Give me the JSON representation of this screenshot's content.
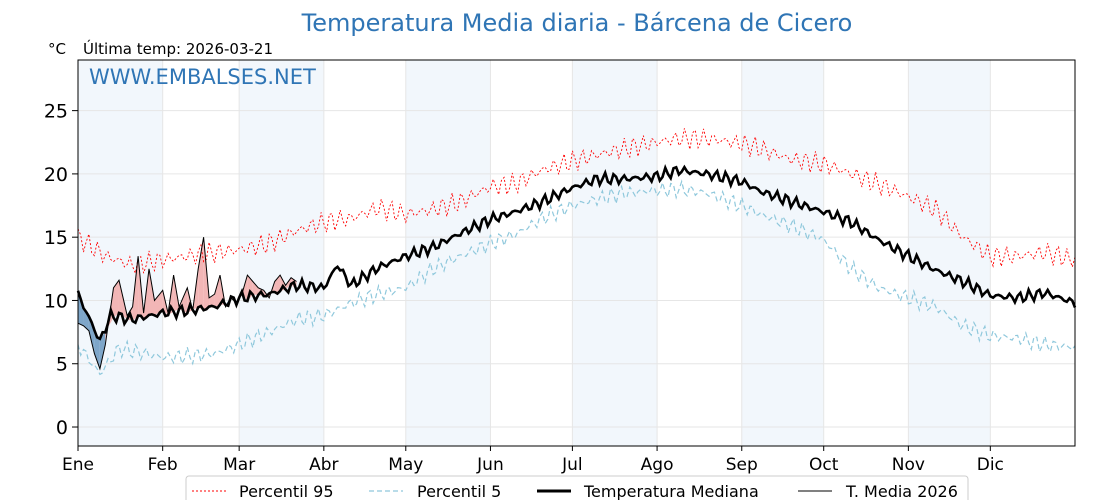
{
  "chart_data": {
    "type": "line",
    "title": "Temperatura Media diaria - Bárcena de Cicero",
    "unit_label": "°C",
    "last_temp_label": "Última temp: 2026-03-21",
    "watermark": "WWW.EMBALSES.NET",
    "xlabel": "",
    "ylabel": "",
    "ylim": [
      -1.5,
      29.0
    ],
    "yticks": [
      0,
      5,
      10,
      15,
      20,
      25
    ],
    "xlim_days": [
      0,
      365
    ],
    "month_labels": [
      "Ene",
      "Feb",
      "Mar",
      "Abr",
      "May",
      "Jun",
      "Jul",
      "Ago",
      "Sep",
      "Oct",
      "Nov",
      "Dic"
    ],
    "month_starts": [
      0,
      31,
      59,
      90,
      120,
      151,
      181,
      212,
      243,
      273,
      304,
      334
    ],
    "grid": true,
    "legend_position": "bottom",
    "series": [
      {
        "name": "Percentil 95",
        "color": "#ff0000",
        "style": "dotted",
        "points": [
          [
            0,
            15.0
          ],
          [
            10,
            13.5
          ],
          [
            20,
            12.8
          ],
          [
            31,
            13.2
          ],
          [
            40,
            13.5
          ],
          [
            50,
            13.8
          ],
          [
            59,
            14.0
          ],
          [
            70,
            14.5
          ],
          [
            80,
            15.5
          ],
          [
            90,
            16.2
          ],
          [
            100,
            16.5
          ],
          [
            110,
            17.3
          ],
          [
            120,
            16.8
          ],
          [
            130,
            17.2
          ],
          [
            140,
            17.8
          ],
          [
            151,
            19.0
          ],
          [
            160,
            19.2
          ],
          [
            170,
            20.3
          ],
          [
            181,
            21.0
          ],
          [
            190,
            21.5
          ],
          [
            200,
            22.0
          ],
          [
            212,
            22.5
          ],
          [
            220,
            22.8
          ],
          [
            230,
            22.8
          ],
          [
            243,
            22.4
          ],
          [
            250,
            22.0
          ],
          [
            260,
            21.2
          ],
          [
            273,
            20.8
          ],
          [
            283,
            20.0
          ],
          [
            293,
            19.2
          ],
          [
            304,
            18.2
          ],
          [
            314,
            17.2
          ],
          [
            324,
            15.0
          ],
          [
            334,
            13.5
          ],
          [
            344,
            13.5
          ],
          [
            354,
            13.8
          ],
          [
            365,
            13.2
          ]
        ]
      },
      {
        "name": "Percentil 5",
        "color": "#8fc8dc",
        "style": "dashed",
        "points": [
          [
            0,
            6.5
          ],
          [
            8,
            4.2
          ],
          [
            15,
            6.2
          ],
          [
            25,
            5.8
          ],
          [
            31,
            5.5
          ],
          [
            40,
            5.6
          ],
          [
            50,
            5.8
          ],
          [
            59,
            6.5
          ],
          [
            70,
            7.5
          ],
          [
            80,
            8.5
          ],
          [
            90,
            8.8
          ],
          [
            100,
            9.8
          ],
          [
            110,
            10.5
          ],
          [
            120,
            11.0
          ],
          [
            130,
            12.5
          ],
          [
            140,
            13.5
          ],
          [
            151,
            14.5
          ],
          [
            160,
            15.2
          ],
          [
            170,
            16.5
          ],
          [
            181,
            17.5
          ],
          [
            190,
            18.0
          ],
          [
            200,
            18.5
          ],
          [
            212,
            18.7
          ],
          [
            220,
            18.8
          ],
          [
            230,
            18.5
          ],
          [
            243,
            17.5
          ],
          [
            250,
            16.8
          ],
          [
            260,
            16.0
          ],
          [
            273,
            14.8
          ],
          [
            283,
            12.5
          ],
          [
            293,
            11.0
          ],
          [
            304,
            10.2
          ],
          [
            314,
            9.5
          ],
          [
            324,
            8.0
          ],
          [
            334,
            7.2
          ],
          [
            344,
            7.0
          ],
          [
            354,
            6.5
          ],
          [
            365,
            6.3
          ]
        ]
      },
      {
        "name": "Temperatura Mediana",
        "color": "#000000",
        "style": "solid-thick",
        "points": [
          [
            0,
            10.5
          ],
          [
            8,
            6.8
          ],
          [
            12,
            8.8
          ],
          [
            20,
            8.5
          ],
          [
            31,
            9.0
          ],
          [
            40,
            9.2
          ],
          [
            50,
            9.5
          ],
          [
            59,
            10.2
          ],
          [
            70,
            10.5
          ],
          [
            80,
            11.2
          ],
          [
            90,
            11.0
          ],
          [
            95,
            12.8
          ],
          [
            100,
            11.2
          ],
          [
            110,
            12.6
          ],
          [
            120,
            13.5
          ],
          [
            130,
            14.2
          ],
          [
            140,
            15.3
          ],
          [
            151,
            16.4
          ],
          [
            160,
            17.0
          ],
          [
            170,
            17.8
          ],
          [
            181,
            18.9
          ],
          [
            190,
            19.6
          ],
          [
            200,
            19.6
          ],
          [
            212,
            19.8
          ],
          [
            220,
            20.3
          ],
          [
            230,
            20.0
          ],
          [
            243,
            19.4
          ],
          [
            250,
            18.6
          ],
          [
            260,
            17.9
          ],
          [
            273,
            17.0
          ],
          [
            283,
            16.2
          ],
          [
            293,
            14.8
          ],
          [
            304,
            13.5
          ],
          [
            314,
            12.4
          ],
          [
            324,
            11.5
          ],
          [
            334,
            10.4
          ],
          [
            344,
            10.2
          ],
          [
            354,
            10.6
          ],
          [
            365,
            9.8
          ]
        ]
      },
      {
        "name": "T. Media 2026",
        "color": "#000000",
        "style": "solid-thin",
        "points": [
          [
            0,
            8.2
          ],
          [
            2,
            8.0
          ],
          [
            4,
            7.6
          ],
          [
            6,
            5.8
          ],
          [
            8,
            4.6
          ],
          [
            10,
            6.5
          ],
          [
            13,
            11.0
          ],
          [
            15,
            11.6
          ],
          [
            18,
            8.8
          ],
          [
            20,
            9.5
          ],
          [
            22,
            13.5
          ],
          [
            24,
            9.0
          ],
          [
            26,
            12.5
          ],
          [
            28,
            10.0
          ],
          [
            31,
            10.8
          ],
          [
            33,
            9.0
          ],
          [
            35,
            12.0
          ],
          [
            37,
            9.5
          ],
          [
            40,
            11.0
          ],
          [
            42,
            9.2
          ],
          [
            44,
            12.5
          ],
          [
            46,
            15.0
          ],
          [
            48,
            10.2
          ],
          [
            50,
            10.5
          ],
          [
            52,
            12.0
          ],
          [
            54,
            9.5
          ],
          [
            56,
            10.2
          ],
          [
            58,
            9.8
          ],
          [
            60,
            10.5
          ],
          [
            62,
            12.0
          ],
          [
            64,
            11.5
          ],
          [
            66,
            11.0
          ],
          [
            68,
            10.8
          ],
          [
            70,
            10.2
          ],
          [
            72,
            11.5
          ],
          [
            74,
            12.0
          ],
          [
            76,
            11.2
          ],
          [
            78,
            11.8
          ],
          [
            80,
            11.5
          ]
        ]
      }
    ]
  },
  "legend": {
    "p95_label": "Percentil 95",
    "p5_label": "Percentil 5",
    "median_label": "Temperatura Mediana",
    "year_label": "T. Media 2026"
  }
}
